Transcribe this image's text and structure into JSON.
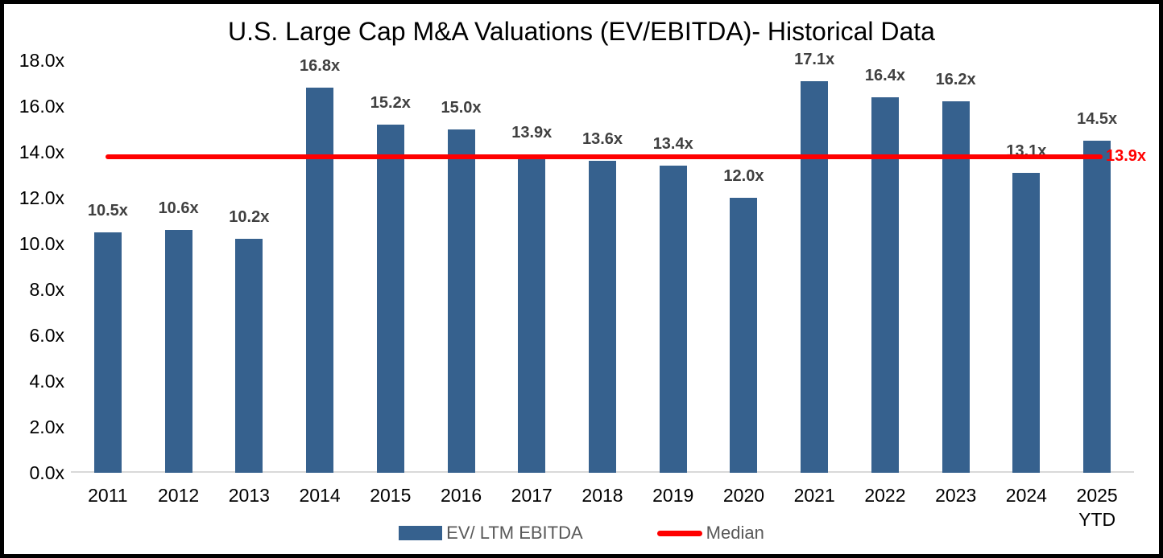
{
  "frame": {
    "background": "#FFFFFF",
    "border_color": "#000000"
  },
  "chart_data": {
    "type": "bar",
    "title": "U.S. Large Cap M&A Valuations (EV/EBITDA)- Historical Data",
    "categories": [
      "2011",
      "2012",
      "2013",
      "2014",
      "2015",
      "2016",
      "2017",
      "2018",
      "2019",
      "2020",
      "2021",
      "2022",
      "2023",
      "2024",
      "2025\nYTD"
    ],
    "series": [
      {
        "name": "EV/ LTM EBITDA",
        "values": [
          10.5,
          10.6,
          10.2,
          16.8,
          15.2,
          15.0,
          13.9,
          13.6,
          13.4,
          12.0,
          17.1,
          16.4,
          16.2,
          13.1,
          14.5
        ]
      }
    ],
    "data_labels": [
      "10.5x",
      "10.6x",
      "10.2x",
      "16.8x",
      "15.2x",
      "15.0x",
      "13.9x",
      "13.6x",
      "13.4x",
      "12.0x",
      "17.1x",
      "16.4x",
      "16.2x",
      "13.1x",
      "14.5x"
    ],
    "median_line": {
      "value": 13.9,
      "label": "13.9x",
      "color": "#FF0000"
    },
    "y_axis": {
      "min": 0,
      "max": 18,
      "step": 2,
      "tick_labels": [
        "0.0x",
        "2.0x",
        "4.0x",
        "6.0x",
        "8.0x",
        "10.0x",
        "12.0x",
        "14.0x",
        "16.0x",
        "18.0x"
      ]
    },
    "ylim": [
      0,
      18
    ],
    "grid": false,
    "legend_position": "bottom",
    "legend": {
      "items": [
        {
          "label": "EV/ LTM EBITDA",
          "marker": "bar",
          "color": "#36618E"
        },
        {
          "label": "Median",
          "marker": "line",
          "color": "#FF0000"
        }
      ]
    },
    "colors": {
      "bar": "#36618E",
      "median_line": "#FF0000",
      "data_label": "#404040",
      "axis_label": "#000000",
      "legend_text": "#595959",
      "axis_line": "#D9D9D9"
    }
  }
}
